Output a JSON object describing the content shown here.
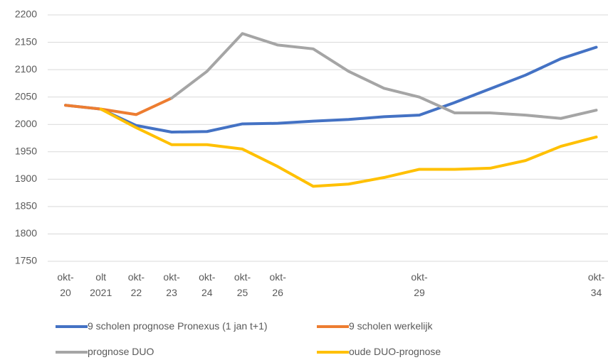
{
  "chart_data": {
    "type": "line",
    "categories": [
      "okt-\n20",
      "olt\n2021",
      "okt-\n22",
      "okt-\n23",
      "okt-\n24",
      "okt-\n25",
      "okt-\n26",
      null,
      null,
      null,
      "okt-\n29",
      null,
      null,
      null,
      null,
      "okt-\n34"
    ],
    "series": [
      {
        "name": "9 scholen prognose Pronexus (1 jan t+1)",
        "color": "#4472c4",
        "values": [
          2035,
          2028,
          1998,
          1986,
          1987,
          2001,
          2002,
          2006,
          2009,
          2014,
          2017,
          2040,
          2065,
          2090,
          2120,
          2141
        ]
      },
      {
        "name": "9 scholen werkelijk",
        "color": "#ed7d31",
        "values": [
          2035,
          2028,
          2018,
          2048,
          null,
          null,
          null,
          null,
          null,
          null,
          null,
          null,
          null,
          null,
          null,
          null
        ]
      },
      {
        "name": "prognose DUO",
        "color": "#a5a5a5",
        "values": [
          null,
          null,
          null,
          2048,
          2097,
          2166,
          2145,
          2138,
          2097,
          2066,
          2050,
          2021,
          2021,
          2017,
          2011,
          2026
        ]
      },
      {
        "name": "oude DUO-prognose",
        "color": "#ffc000",
        "values": [
          null,
          2028,
          1994,
          1963,
          1963,
          1955,
          1923,
          1887,
          1891,
          1903,
          1918,
          1918,
          1920,
          1934,
          1960,
          1977
        ]
      }
    ],
    "ylim": [
      1750,
      2200
    ],
    "yticks": [
      1750,
      1800,
      1850,
      1900,
      1950,
      2000,
      2050,
      2100,
      2150,
      2200
    ],
    "grid": true
  }
}
